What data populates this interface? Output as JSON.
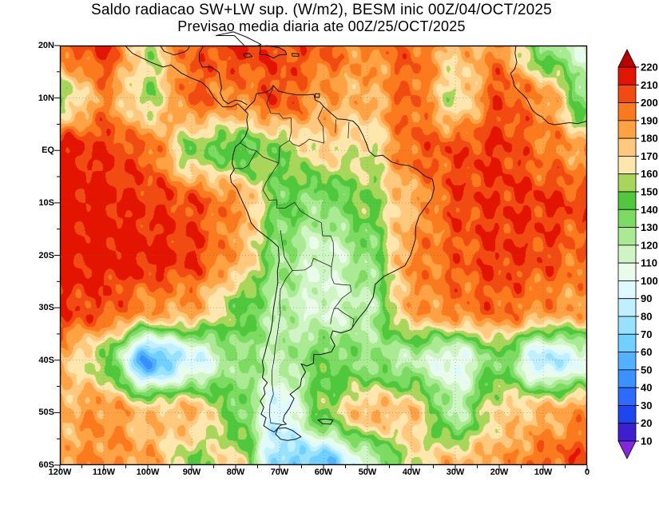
{
  "title": {
    "line1": "Saldo radiacao SW+LW sup. (W/m2), BESM inic 00Z/04/OCT/2025",
    "line2": "Previsao media diaria ate 00Z/25/OCT/2025"
  },
  "axes": {
    "lat_labels": [
      "20N",
      "10N",
      "EQ",
      "10S",
      "20S",
      "30S",
      "40S",
      "50S",
      "60S"
    ],
    "lon_labels": [
      "120W",
      "110W",
      "100W",
      "90W",
      "80W",
      "70W",
      "60W",
      "50W",
      "40W",
      "30W",
      "20W",
      "10W",
      "0"
    ]
  },
  "colorbar": {
    "labels": [
      "220",
      "210",
      "200",
      "190",
      "180",
      "170",
      "160",
      "150",
      "140",
      "130",
      "120",
      "110",
      "100",
      "90",
      "80",
      "70",
      "60",
      "50",
      "40",
      "30",
      "20",
      "10"
    ],
    "cell_colors_low_to_high": [
      "#3d1fd0",
      "#1e46f0",
      "#2b6cff",
      "#3a92ff",
      "#52b2ff",
      "#70d0ff",
      "#98e2ff",
      "#c0f0ff",
      "#defaff",
      "#e9fce9",
      "#d0f5c4",
      "#a9ea93",
      "#7cdb61",
      "#4fc83e",
      "#a8d65a",
      "#ffe6ac",
      "#ffc87d",
      "#ffa244",
      "#fb7a1e",
      "#f24b12",
      "#e31400"
    ],
    "above_max_color": "#bb0000",
    "below_min_color": "#8228dc"
  },
  "chart_data": {
    "type": "heatmap",
    "variable": "Saldo radiacao SW+LW sup.",
    "units": "W/m2",
    "model": "BESM",
    "init_time": "00Z/04/OCT/2025",
    "valid_until": "00Z/25/OCT/2025",
    "lon_range": [
      -120,
      0
    ],
    "lat_range": [
      -60,
      20
    ],
    "levels_min": 10,
    "levels_max": 220,
    "level_step": 10,
    "lon": [
      -120,
      -110,
      -100,
      -90,
      -80,
      -70,
      -60,
      -50,
      -40,
      -30,
      -20,
      -10,
      0
    ],
    "lat": [
      20,
      10,
      0,
      -10,
      -20,
      -30,
      -40,
      -50,
      -60
    ],
    "values": [
      [
        200,
        210,
        160,
        200,
        210,
        205,
        200,
        190,
        200,
        175,
        190,
        130,
        110
      ],
      [
        150,
        190,
        155,
        200,
        190,
        205,
        185,
        180,
        200,
        160,
        205,
        190,
        130
      ],
      [
        215,
        210,
        200,
        150,
        140,
        150,
        170,
        160,
        200,
        205,
        210,
        195,
        185
      ],
      [
        218,
        215,
        210,
        205,
        190,
        140,
        130,
        150,
        180,
        205,
        210,
        210,
        205
      ],
      [
        215,
        218,
        215,
        210,
        185,
        130,
        110,
        130,
        190,
        200,
        210,
        205,
        195
      ],
      [
        210,
        205,
        190,
        185,
        150,
        120,
        110,
        120,
        185,
        195,
        200,
        190,
        185
      ],
      [
        180,
        150,
        50,
        90,
        130,
        120,
        140,
        130,
        120,
        100,
        140,
        80,
        100
      ],
      [
        180,
        190,
        175,
        180,
        140,
        90,
        150,
        180,
        175,
        120,
        170,
        180,
        190
      ],
      [
        185,
        190,
        185,
        150,
        170,
        70,
        60,
        110,
        160,
        180,
        185,
        200,
        205
      ]
    ]
  }
}
